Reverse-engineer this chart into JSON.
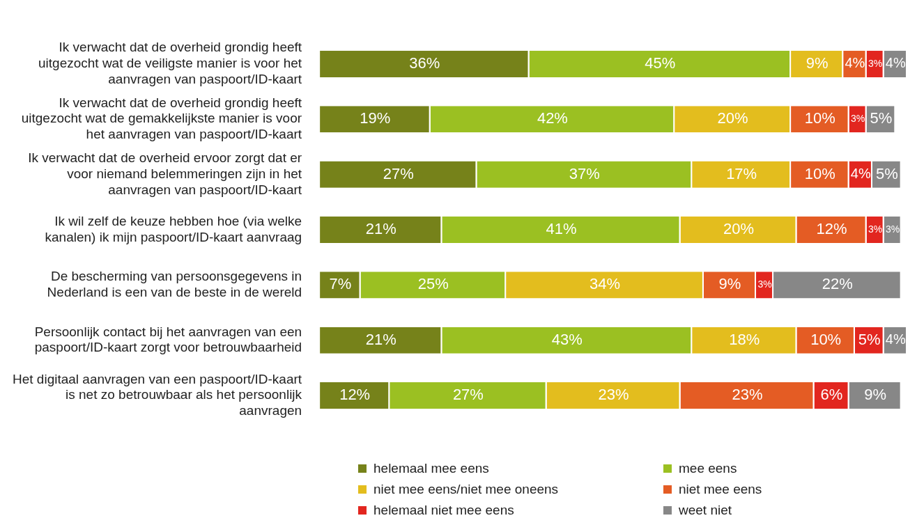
{
  "chart_data": {
    "type": "bar",
    "orientation": "horizontal",
    "stacked": true,
    "legend": "bottom",
    "tick_labels": "y",
    "categories": [
      "Ik verwacht dat de overheid grondig heeft uitgezocht wat de veiligste manier is voor het aanvragen van paspoort/ID-kaart",
      "Ik verwacht dat de overheid grondig heeft uitgezocht wat de gemakkelijkste manier is voor het aanvragen van paspoort/ID-kaart",
      "Ik verwacht dat de overheid ervoor zorgt dat er voor niemand belemmeringen zijn in het aanvragen van paspoort/ID-kaart",
      "Ik wil zelf de keuze hebben hoe (via welke kanalen) ik mijn paspoort/ID-kaart aanvraag",
      "De bescherming van persoonsgegevens in Nederland is een van de beste in de wereld",
      "Persoonlijk contact bij het aanvragen van een paspoort/ID-kaart zorgt voor betrouwbaarheid",
      "Het digitaal aanvragen van een paspoort/ID-kaart is net zo betrouwbaar als het persoonlijk aanvragen"
    ],
    "series": [
      {
        "name": "helemaal mee eens",
        "color": "#76821a",
        "values": [
          36,
          19,
          27,
          21,
          7,
          21,
          12
        ],
        "value_labels": [
          "36%",
          "19%",
          "27%",
          "21%",
          "7%",
          "21%",
          "12%"
        ]
      },
      {
        "name": "mee eens",
        "color": "#9bc022",
        "values": [
          45,
          42,
          37,
          41,
          25,
          43,
          27
        ],
        "value_labels": [
          "45%",
          "42%",
          "37%",
          "41%",
          "25%",
          "43%",
          "27%"
        ]
      },
      {
        "name": "niet mee eens/niet mee oneens",
        "color": "#e3bd1e",
        "values": [
          9,
          20,
          17,
          20,
          34,
          18,
          23
        ],
        "value_labels": [
          "9%",
          "20%",
          "17%",
          "20%",
          "34%",
          "18%",
          "23%"
        ]
      },
      {
        "name": "niet mee eens",
        "color": "#e45c24",
        "values": [
          4,
          10,
          10,
          12,
          9,
          10,
          23
        ],
        "value_labels": [
          "4%",
          "10%",
          "10%",
          "12%",
          "9%",
          "10%",
          "23%"
        ]
      },
      {
        "name": "helemaal niet mee eens",
        "color": "#e2261f",
        "values": [
          3,
          3,
          4,
          3,
          3,
          5,
          6
        ],
        "value_labels": [
          "3%",
          "3%",
          "4%",
          "3%",
          "3%",
          "5%",
          "6%"
        ]
      },
      {
        "name": "weet niet",
        "color": "#878787",
        "values": [
          4,
          5,
          5,
          3,
          22,
          4,
          9
        ],
        "value_labels": [
          "4%",
          "5%",
          "5%",
          "3%",
          "22%",
          "4%",
          "9%"
        ]
      }
    ]
  }
}
